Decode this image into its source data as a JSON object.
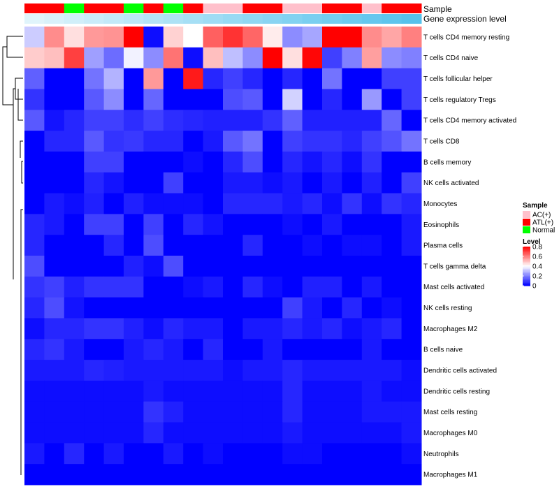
{
  "chart_data": {
    "type": "heatmap",
    "annotation_tracks": [
      "Sample",
      "Gene expression level"
    ],
    "sample_groups": [
      "ATL(+)",
      "ATL(+)",
      "Normal",
      "ATL(+)",
      "ATL(+)",
      "Normal",
      "ATL(+)",
      "Normal",
      "ATL(+)",
      "AC(+)",
      "AC(+)",
      "ATL(+)",
      "ATL(+)",
      "AC(+)",
      "AC(+)",
      "ATL(+)",
      "ATL(+)",
      "AC(+)",
      "ATL(+)",
      "ATL(+)"
    ],
    "expression_levels": [
      0.0,
      0.05,
      0.1,
      0.15,
      0.2,
      0.25,
      0.3,
      0.35,
      0.4,
      0.45,
      0.5,
      0.55,
      0.6,
      0.65,
      0.7,
      0.75,
      0.8,
      0.85,
      0.9,
      0.95
    ],
    "rows": [
      "T cells CD4 memory resting",
      "T cells CD4 naive",
      "T cells follicular helper",
      "T cells regulatory  Tregs",
      "T cells CD4 memory activated",
      "T cells CD8",
      "B cells memory",
      "NK cells activated",
      "Monocytes",
      "Eosinophils",
      "Plasma cells",
      "T cells gamma delta",
      "Mast cells activated",
      "NK cells resting",
      "Macrophages M2",
      "B cells naive",
      "Dendritic cells activated",
      "Dendritic cells resting",
      "Mast cells resting",
      "Macrophages M0",
      "Neutrophils",
      "Macrophages M1"
    ],
    "values": [
      [
        0.32,
        0.58,
        0.45,
        0.56,
        0.57,
        0.8,
        0.02,
        0.47,
        0.4,
        0.65,
        0.72,
        0.64,
        0.43,
        0.22,
        0.26,
        0.8,
        0.8,
        0.58,
        0.54,
        0.6
      ],
      [
        0.48,
        0.5,
        0.7,
        0.25,
        0.17,
        0.38,
        0.22,
        0.62,
        0.02,
        0.5,
        0.3,
        0.22,
        0.8,
        0.45,
        0.79,
        0.1,
        0.2,
        0.55,
        0.22,
        0.2
      ],
      [
        0.15,
        0.0,
        0.0,
        0.18,
        0.28,
        0.0,
        0.56,
        0.0,
        0.76,
        0.06,
        0.1,
        0.06,
        0.0,
        0.06,
        0.0,
        0.18,
        0.0,
        0.0,
        0.1,
        0.1
      ],
      [
        0.08,
        0.0,
        0.0,
        0.14,
        0.22,
        0.0,
        0.16,
        0.0,
        0.0,
        0.0,
        0.12,
        0.14,
        0.0,
        0.33,
        0.0,
        0.06,
        0.0,
        0.24,
        0.0,
        0.1
      ],
      [
        0.14,
        0.03,
        0.06,
        0.1,
        0.1,
        0.07,
        0.1,
        0.07,
        0.06,
        0.05,
        0.05,
        0.05,
        0.08,
        0.15,
        0.05,
        0.05,
        0.05,
        0.05,
        0.16,
        0.0
      ],
      [
        0.0,
        0.06,
        0.06,
        0.14,
        0.08,
        0.09,
        0.06,
        0.06,
        0.0,
        0.04,
        0.14,
        0.18,
        0.0,
        0.1,
        0.08,
        0.08,
        0.06,
        0.1,
        0.13,
        0.18
      ],
      [
        0.0,
        0.0,
        0.0,
        0.1,
        0.1,
        0.0,
        0.0,
        0.0,
        0.02,
        0.0,
        0.06,
        0.12,
        0.0,
        0.06,
        0.03,
        0.06,
        0.02,
        0.08,
        0.0,
        0.0
      ],
      [
        0.0,
        0.0,
        0.0,
        0.06,
        0.03,
        0.0,
        0.0,
        0.1,
        0.0,
        0.0,
        0.04,
        0.04,
        0.02,
        0.04,
        0.0,
        0.04,
        0.0,
        0.05,
        0.0,
        0.1
      ],
      [
        0.0,
        0.04,
        0.02,
        0.05,
        0.0,
        0.05,
        0.02,
        0.02,
        0.02,
        0.0,
        0.06,
        0.06,
        0.06,
        0.04,
        0.06,
        0.02,
        0.08,
        0.02,
        0.08,
        0.06
      ],
      [
        0.06,
        0.04,
        0.0,
        0.1,
        0.1,
        0.0,
        0.1,
        0.0,
        0.06,
        0.03,
        0.0,
        0.0,
        0.0,
        0.02,
        0.0,
        0.04,
        0.0,
        0.0,
        0.0,
        0.04
      ],
      [
        0.06,
        0.0,
        0.0,
        0.0,
        0.06,
        0.0,
        0.12,
        0.0,
        0.0,
        0.0,
        0.0,
        0.06,
        0.0,
        0.0,
        0.02,
        0.0,
        0.02,
        0.02,
        0.0,
        0.04
      ],
      [
        0.12,
        0.0,
        0.0,
        0.0,
        0.0,
        0.05,
        0.02,
        0.12,
        0.0,
        0.0,
        0.0,
        0.0,
        0.0,
        0.0,
        0.0,
        0.0,
        0.0,
        0.0,
        0.0,
        0.0
      ],
      [
        0.08,
        0.1,
        0.05,
        0.08,
        0.08,
        0.08,
        0.0,
        0.0,
        0.02,
        0.04,
        0.0,
        0.06,
        0.02,
        0.0,
        0.05,
        0.05,
        0.0,
        0.04,
        0.0,
        0.0
      ],
      [
        0.06,
        0.12,
        0.03,
        0.0,
        0.0,
        0.0,
        0.0,
        0.0,
        0.0,
        0.0,
        0.0,
        0.0,
        0.0,
        0.1,
        0.04,
        0.0,
        0.06,
        0.0,
        0.02,
        0.0
      ],
      [
        0.02,
        0.06,
        0.06,
        0.08,
        0.08,
        0.05,
        0.02,
        0.06,
        0.04,
        0.04,
        0.0,
        0.04,
        0.04,
        0.06,
        0.04,
        0.06,
        0.02,
        0.04,
        0.06,
        0.0
      ],
      [
        0.06,
        0.08,
        0.04,
        0.0,
        0.0,
        0.04,
        0.06,
        0.04,
        0.0,
        0.06,
        0.0,
        0.0,
        0.04,
        0.0,
        0.0,
        0.0,
        0.0,
        0.04,
        0.0,
        0.0
      ],
      [
        0.04,
        0.04,
        0.04,
        0.06,
        0.05,
        0.04,
        0.04,
        0.04,
        0.04,
        0.04,
        0.02,
        0.04,
        0.04,
        0.06,
        0.04,
        0.04,
        0.04,
        0.04,
        0.04,
        0.02
      ],
      [
        0.02,
        0.02,
        0.02,
        0.02,
        0.02,
        0.02,
        0.04,
        0.02,
        0.02,
        0.02,
        0.02,
        0.02,
        0.02,
        0.06,
        0.02,
        0.02,
        0.02,
        0.04,
        0.02,
        0.02
      ],
      [
        0.02,
        0.02,
        0.02,
        0.02,
        0.02,
        0.02,
        0.08,
        0.05,
        0.02,
        0.02,
        0.02,
        0.02,
        0.02,
        0.06,
        0.02,
        0.02,
        0.02,
        0.04,
        0.04,
        0.04
      ],
      [
        0.02,
        0.02,
        0.02,
        0.02,
        0.02,
        0.02,
        0.06,
        0.02,
        0.02,
        0.02,
        0.02,
        0.02,
        0.02,
        0.04,
        0.02,
        0.02,
        0.02,
        0.02,
        0.02,
        0.04
      ],
      [
        0.04,
        0.0,
        0.06,
        0.0,
        0.04,
        0.0,
        0.0,
        0.04,
        0.0,
        0.02,
        0.0,
        0.0,
        0.0,
        0.02,
        0.02,
        0.0,
        0.0,
        0.0,
        0.0,
        0.02
      ],
      [
        0.0,
        0.0,
        0.0,
        0.0,
        0.0,
        0.0,
        0.0,
        0.0,
        0.0,
        0.0,
        0.0,
        0.0,
        0.0,
        0.0,
        0.0,
        0.0,
        0.0,
        0.0,
        0.0,
        0.0
      ]
    ],
    "legend_sample": {
      "title": "Sample",
      "entries": [
        {
          "label": "AC(+)",
          "color": "#ffc0cb"
        },
        {
          "label": "ATL(+)",
          "color": "#ff0000"
        },
        {
          "label": "Normal",
          "color": "#00ff00"
        }
      ]
    },
    "legend_level": {
      "title": "Level",
      "ticks": [
        "0.8",
        "0.6",
        "0.4",
        "0.2",
        "0"
      ],
      "tick_values": [
        0.8,
        0.6,
        0.4,
        0.2,
        0.0
      ],
      "range": [
        0,
        0.8
      ]
    },
    "color_scale": {
      "low": "#0000ff",
      "mid": "#ffffff",
      "high": "#ff0000",
      "midpoint": 0.4
    },
    "expression_colors": {
      "low": "#e0f4fb",
      "high": "#56c2ec"
    }
  }
}
